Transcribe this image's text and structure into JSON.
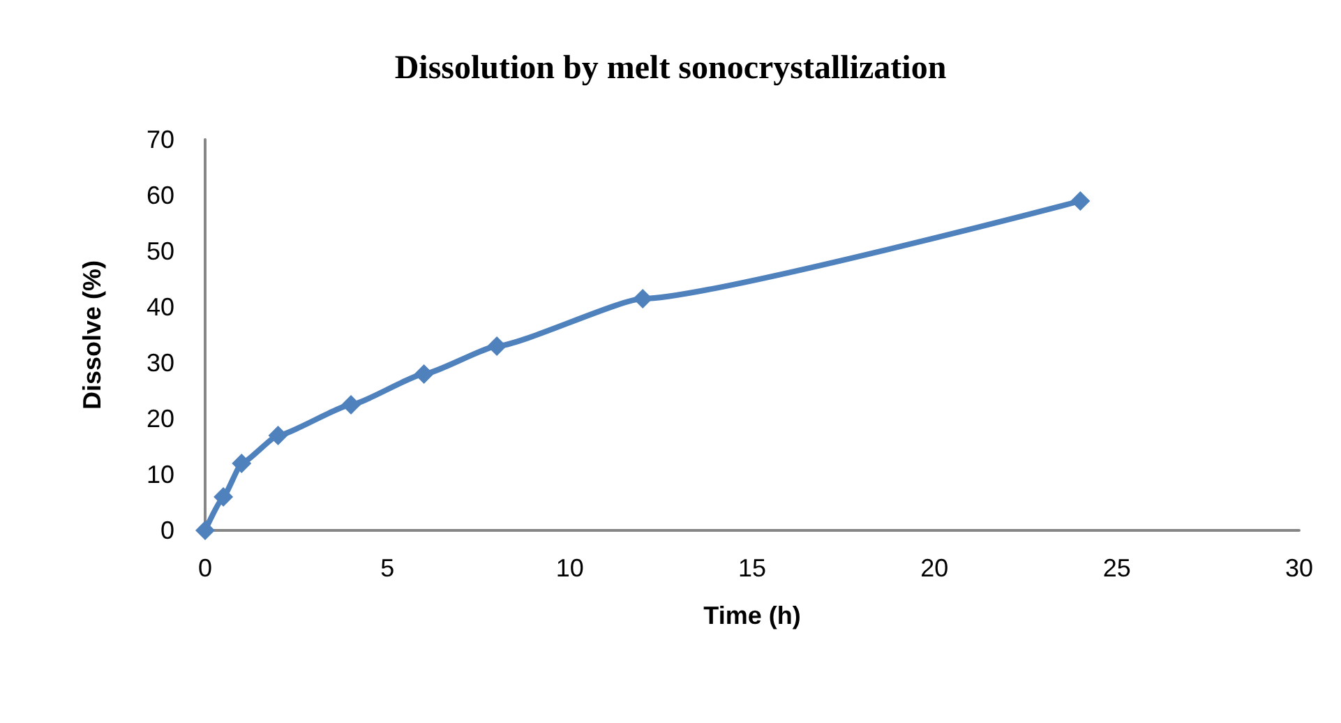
{
  "chart_data": {
    "type": "line",
    "title": "Dissolution by melt sonocrystallization",
    "xlabel": "Time (h)",
    "ylabel": "Dissolve (%)",
    "x": [
      0,
      0.5,
      1,
      2,
      4,
      6,
      8,
      12,
      24
    ],
    "series": [
      {
        "color": "#4f81bd",
        "values": [
          0,
          6,
          12,
          17,
          22.5,
          28,
          33,
          41.5,
          59
        ]
      }
    ],
    "xlim": [
      0,
      30
    ],
    "xticks": [
      0,
      5,
      10,
      15,
      20,
      25,
      30
    ],
    "ylim": [
      0,
      70
    ],
    "yticks": [
      0,
      10,
      20,
      30,
      40,
      50,
      60,
      70
    ],
    "grid": false,
    "marker": "diamond",
    "line_style": "solid"
  }
}
